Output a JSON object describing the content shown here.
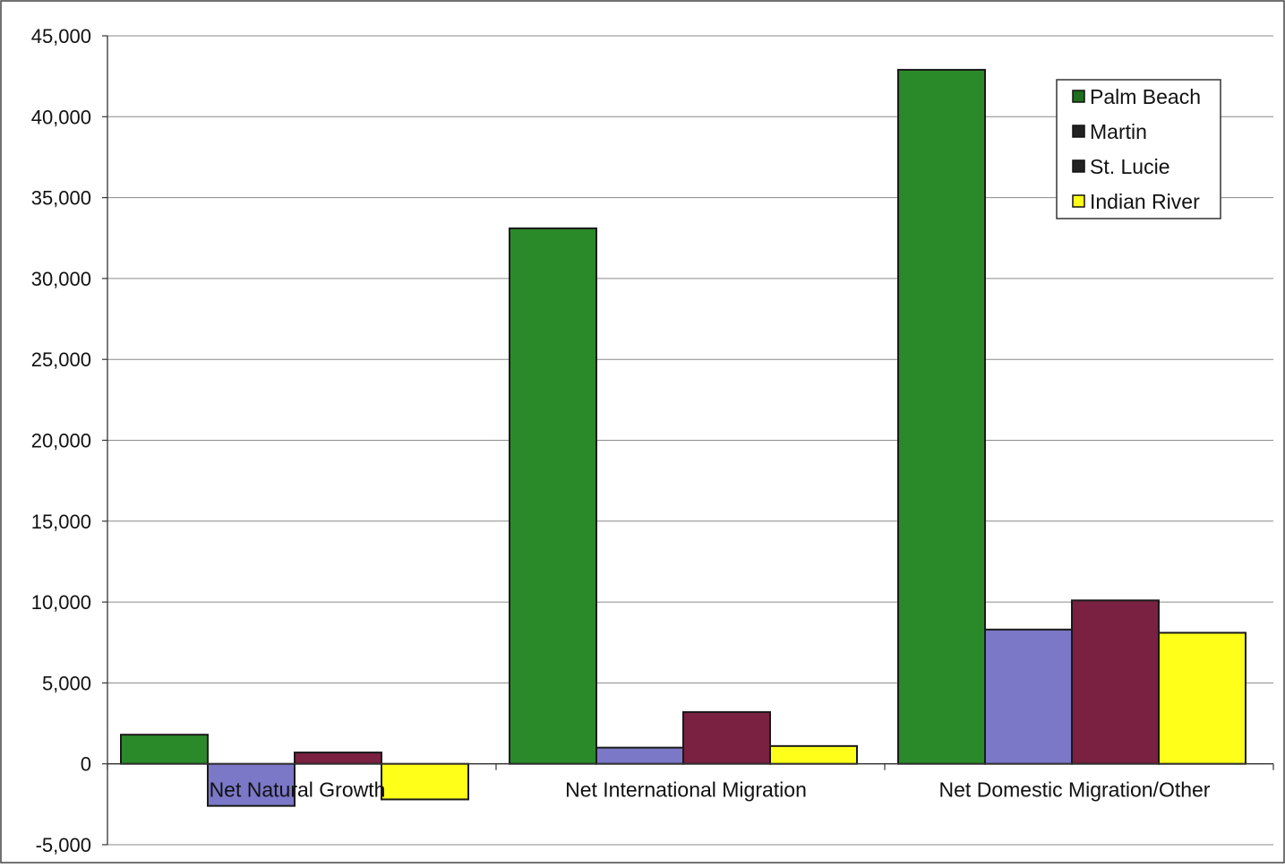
{
  "chart_data": {
    "type": "bar",
    "title": "",
    "xlabel": "",
    "ylabel": "",
    "ylim": [
      -5000,
      45000
    ],
    "y_ticks": [
      45000,
      40000,
      35000,
      30000,
      25000,
      20000,
      15000,
      10000,
      5000,
      0,
      -5000
    ],
    "y_tick_labels": [
      "45,000",
      "40,000",
      "35,000",
      "30,000",
      "25,000",
      "20,000",
      "15,000",
      "10,000",
      "5,000",
      "0",
      "-5,000"
    ],
    "categories": [
      "Net Natural Growth",
      "Net International Migration",
      "Net Domestic Migration/Other"
    ],
    "series": [
      {
        "name": "Palm Beach",
        "color": "#2a8a2a",
        "values": [
          1800,
          33100,
          42900
        ]
      },
      {
        "name": "Martin",
        "color": "#7b78c8",
        "values": [
          -2600,
          1000,
          8300
        ]
      },
      {
        "name": "St. Lucie",
        "color": "#7a2040",
        "values": [
          700,
          3200,
          10100
        ]
      },
      {
        "name": "Indian River",
        "color": "#ffff1a",
        "values": [
          -2200,
          1100,
          8100
        ]
      }
    ],
    "legend_markers": [
      "#1e6e1e",
      "#222222",
      "#222222",
      "#ffff1a"
    ],
    "grid": true,
    "legend_position": "top-right"
  }
}
